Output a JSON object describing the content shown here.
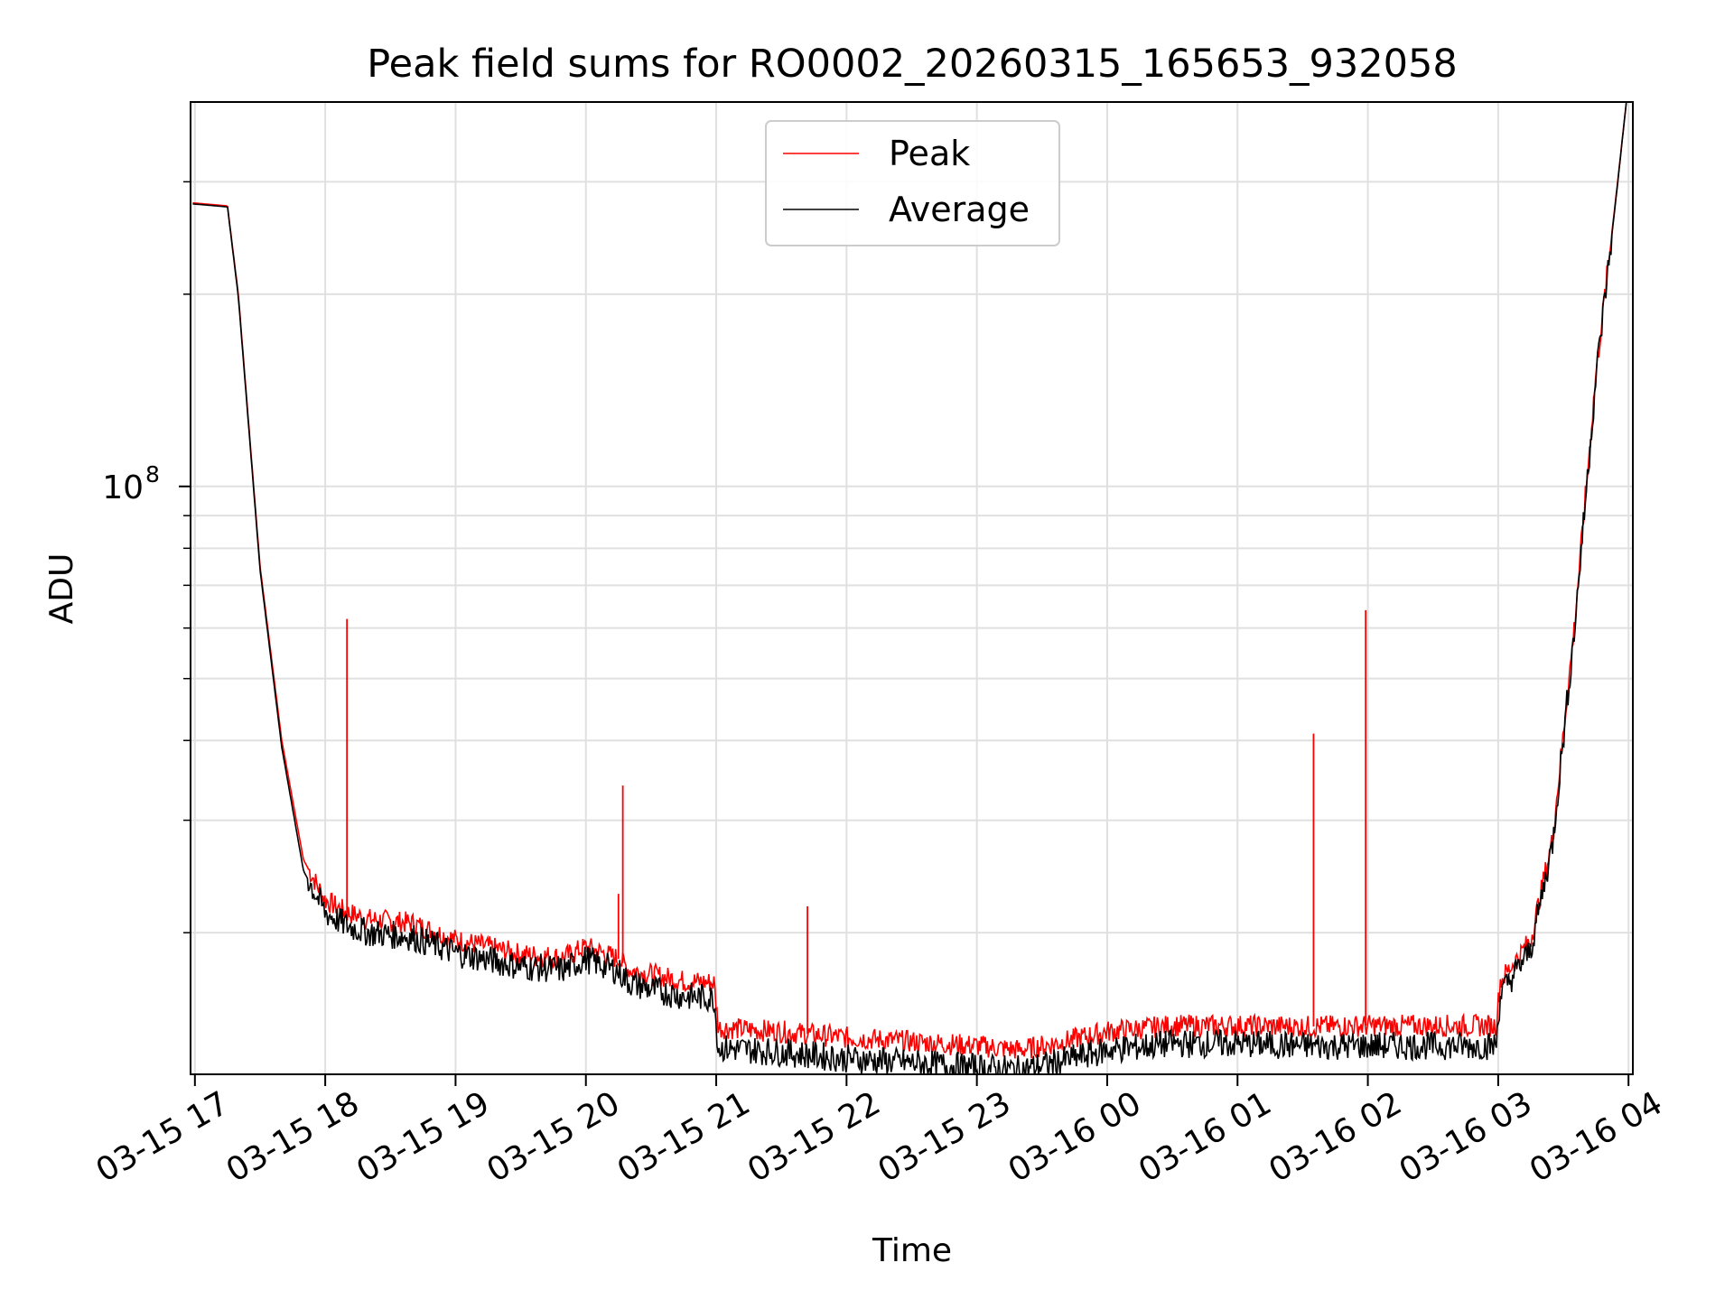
{
  "chart_data": {
    "type": "line",
    "title": "Peak field sums for RO0002_20260315_165653_932058",
    "xlabel": "Time",
    "ylabel": "ADU",
    "y_scale": "log",
    "ylim": [
      12000000,
      400000000
    ],
    "y_major_ticks": [
      {
        "value": 100000000,
        "base": "10",
        "exponent": "8"
      }
    ],
    "y_minor_tick_values": [
      20000000,
      30000000,
      40000000,
      50000000,
      60000000,
      70000000,
      80000000,
      90000000,
      200000000,
      300000000
    ],
    "xlim": [
      "2026-03-15 16:58",
      "2026-03-16 04:02"
    ],
    "x_tick_labels": [
      "03-15 17",
      "03-15 18",
      "03-15 19",
      "03-15 20",
      "03-15 21",
      "03-15 22",
      "03-15 23",
      "03-16 00",
      "03-16 01",
      "03-16 02",
      "03-16 03",
      "03-16 04"
    ],
    "x_tick_times": [
      "2026-03-15 17:00",
      "2026-03-15 18:00",
      "2026-03-15 19:00",
      "2026-03-15 20:00",
      "2026-03-15 21:00",
      "2026-03-15 22:00",
      "2026-03-15 23:00",
      "2026-03-16 00:00",
      "2026-03-16 01:00",
      "2026-03-16 02:00",
      "2026-03-16 03:00",
      "2026-03-16 04:00"
    ],
    "grid": true,
    "legend": {
      "position": "top-center"
    },
    "colors": {
      "peak": "#ff0000",
      "average": "#000000",
      "grid": "#e0e0e0"
    },
    "series": [
      {
        "name": "Peak",
        "color": "#ff0000",
        "x": [
          "2026-03-15 16:59",
          "2026-03-15 17:15",
          "2026-03-15 17:20",
          "2026-03-15 17:30",
          "2026-03-15 17:40",
          "2026-03-15 17:50",
          "2026-03-15 18:00",
          "2026-03-15 18:10",
          "2026-03-15 18:20",
          "2026-03-15 18:40",
          "2026-03-15 19:00",
          "2026-03-15 19:30",
          "2026-03-15 19:50",
          "2026-03-15 20:00",
          "2026-03-15 20:15",
          "2026-03-15 20:20",
          "2026-03-15 20:30",
          "2026-03-15 20:45",
          "2026-03-15 20:59",
          "2026-03-15 21:01",
          "2026-03-15 21:30",
          "2026-03-15 22:00",
          "2026-03-15 22:30",
          "2026-03-15 23:00",
          "2026-03-15 23:20",
          "2026-03-15 23:40",
          "2026-03-16 00:00",
          "2026-03-16 00:30",
          "2026-03-16 01:00",
          "2026-03-16 01:30",
          "2026-03-16 02:00",
          "2026-03-16 02:30",
          "2026-03-16 02:59",
          "2026-03-16 03:01",
          "2026-03-16 03:15",
          "2026-03-16 03:25",
          "2026-03-16 03:35",
          "2026-03-16 03:45",
          "2026-03-16 03:55",
          "2026-03-16 03:59"
        ],
        "values": [
          278000000,
          275000000,
          200000000,
          75000000,
          40000000,
          26000000,
          22500000,
          21500000,
          21000000,
          20700000,
          19500000,
          18500000,
          18300000,
          19000000,
          18200000,
          17500000,
          17200000,
          16800000,
          16700000,
          14200000,
          14000000,
          13700000,
          13500000,
          13300000,
          13100000,
          13500000,
          14000000,
          14300000,
          14300000,
          14250000,
          14300000,
          14300000,
          14300000,
          16800000,
          19500000,
          28000000,
          60000000,
          150000000,
          300000000,
          400000000
        ],
        "spikes": [
          {
            "x": "2026-03-15 18:10",
            "y": 62000000
          },
          {
            "x": "2026-03-15 20:15",
            "y": 23000000
          },
          {
            "x": "2026-03-15 20:17",
            "y": 34000000
          },
          {
            "x": "2026-03-15 21:42",
            "y": 22000000
          },
          {
            "x": "2026-03-16 01:35",
            "y": 41000000
          },
          {
            "x": "2026-03-16 01:59",
            "y": 64000000
          }
        ]
      },
      {
        "name": "Average",
        "color": "#000000",
        "x": [
          "2026-03-15 16:59",
          "2026-03-15 17:15",
          "2026-03-15 17:20",
          "2026-03-15 17:30",
          "2026-03-15 17:40",
          "2026-03-15 17:50",
          "2026-03-15 18:00",
          "2026-03-15 18:10",
          "2026-03-15 18:20",
          "2026-03-15 18:40",
          "2026-03-15 19:00",
          "2026-03-15 19:30",
          "2026-03-15 19:50",
          "2026-03-15 20:00",
          "2026-03-15 20:15",
          "2026-03-15 20:20",
          "2026-03-15 20:30",
          "2026-03-15 20:45",
          "2026-03-15 20:59",
          "2026-03-15 21:01",
          "2026-03-15 21:30",
          "2026-03-15 22:00",
          "2026-03-15 22:30",
          "2026-03-15 23:00",
          "2026-03-15 23:20",
          "2026-03-15 23:40",
          "2026-03-16 00:00",
          "2026-03-16 00:30",
          "2026-03-16 01:00",
          "2026-03-16 01:30",
          "2026-03-16 02:00",
          "2026-03-16 02:30",
          "2026-03-16 02:59",
          "2026-03-16 03:01",
          "2026-03-16 03:15",
          "2026-03-16 03:25",
          "2026-03-16 03:35",
          "2026-03-16 03:45",
          "2026-03-16 03:55",
          "2026-03-16 03:59"
        ],
        "values": [
          277000000,
          274000000,
          198000000,
          74000000,
          39000000,
          25000000,
          21500000,
          20500000,
          20000000,
          19700000,
          18600000,
          17700000,
          17500000,
          18200000,
          17400000,
          16700000,
          16300000,
          15900000,
          15800000,
          13200000,
          13000000,
          12700000,
          12500000,
          12300000,
          12200000,
          12600000,
          13100000,
          13400000,
          13400000,
          13300000,
          13300000,
          13300000,
          13300000,
          16000000,
          18800000,
          27500000,
          59000000,
          148000000,
          298000000,
          400000000
        ]
      }
    ]
  }
}
